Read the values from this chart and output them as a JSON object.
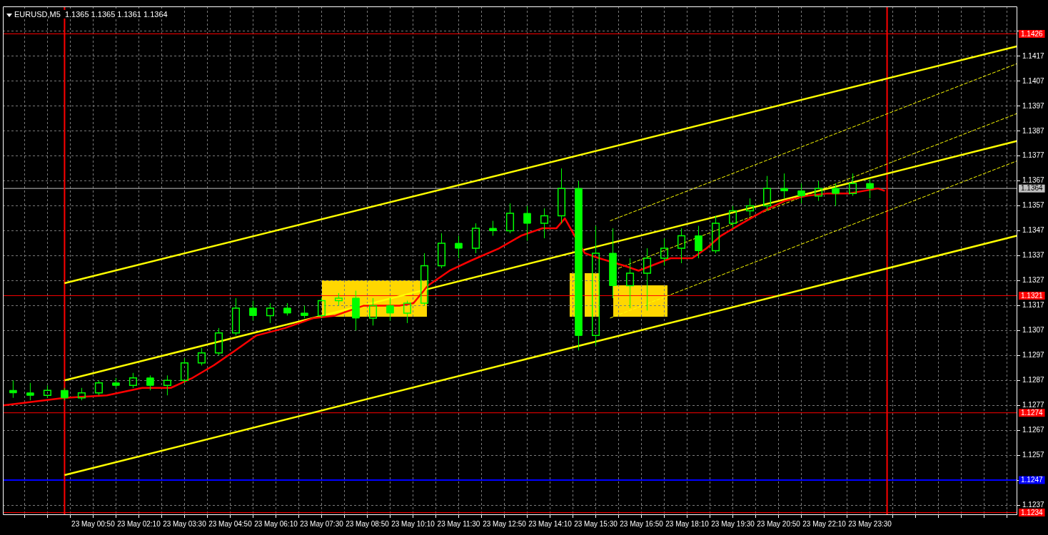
{
  "chart_data": {
    "type": "candlestick",
    "title": "EURUSD,M5  1.1365 1.1365 1.1361 1.1364",
    "color": "#00ff00",
    "x": [
      "--05-22T22:30",
      "--05-22T23:00",
      "--05-22T23:30",
      "--05-23T00:00",
      "--05-23T00:30",
      "--05-23T01:00",
      "--05-23T01:30",
      "--05-23T02:00",
      "--05-23T02:30",
      "--05-23T03:00",
      "--05-23T03:30",
      "--05-23T04:00",
      "--05-23T04:30",
      "--05-23T05:00",
      "--05-23T05:30",
      "--05-23T06:00",
      "--05-23T06:30",
      "--05-23T07:00",
      "--05-23T07:30",
      "--05-23T08:00",
      "--05-23T08:30",
      "--05-23T09:00",
      "--05-23T09:30",
      "--05-23T10:00",
      "--05-23T10:30",
      "--05-23T11:00",
      "--05-23T11:30",
      "--05-23T12:00",
      "--05-23T12:30",
      "--05-23T13:00",
      "--05-23T13:30",
      "--05-23T14:00",
      "--05-23T14:30",
      "--05-23T15:00",
      "--05-23T15:30",
      "--05-23T16:00",
      "--05-23T16:30",
      "--05-23T17:00",
      "--05-23T17:30",
      "--05-23T18:00",
      "--05-23T18:30",
      "--05-23T19:00",
      "--05-23T19:30",
      "--05-23T20:00",
      "--05-23T20:30",
      "--05-23T21:00",
      "--05-23T21:30",
      "--05-23T22:00",
      "--05-23T22:30",
      "--05-23T23:00",
      "--05-23T23:30"
    ],
    "ohlc": [
      [
        1.1283,
        1.1287,
        1.128,
        1.1282
      ],
      [
        1.1282,
        1.1286,
        1.1279,
        1.1281
      ],
      [
        1.1281,
        1.1285,
        1.128,
        1.1283
      ],
      [
        1.1283,
        1.1284,
        1.1279,
        1.128
      ],
      [
        1.128,
        1.1284,
        1.1279,
        1.1282
      ],
      [
        1.1282,
        1.1287,
        1.1281,
        1.1286
      ],
      [
        1.1286,
        1.1288,
        1.1284,
        1.1285
      ],
      [
        1.1285,
        1.129,
        1.1284,
        1.1288
      ],
      [
        1.1288,
        1.1289,
        1.1283,
        1.1285
      ],
      [
        1.1285,
        1.1289,
        1.1281,
        1.1287
      ],
      [
        1.1287,
        1.1296,
        1.1286,
        1.1294
      ],
      [
        1.1294,
        1.13,
        1.1293,
        1.1298
      ],
      [
        1.1298,
        1.1308,
        1.1297,
        1.1306
      ],
      [
        1.1306,
        1.132,
        1.1305,
        1.1316
      ],
      [
        1.1316,
        1.1319,
        1.1311,
        1.1313
      ],
      [
        1.1313,
        1.1318,
        1.131,
        1.1316
      ],
      [
        1.1316,
        1.1318,
        1.1313,
        1.1314
      ],
      [
        1.1314,
        1.1317,
        1.1312,
        1.1313
      ],
      [
        1.1313,
        1.132,
        1.1312,
        1.1319
      ],
      [
        1.1319,
        1.1322,
        1.1317,
        1.132
      ],
      [
        1.132,
        1.1323,
        1.1307,
        1.1312
      ],
      [
        1.1312,
        1.132,
        1.1309,
        1.1317
      ],
      [
        1.1317,
        1.132,
        1.1311,
        1.1314
      ],
      [
        1.1314,
        1.1319,
        1.131,
        1.1318
      ],
      [
        1.1318,
        1.1338,
        1.1317,
        1.1333
      ],
      [
        1.1333,
        1.1346,
        1.1332,
        1.1342
      ],
      [
        1.1342,
        1.1345,
        1.1336,
        1.134
      ],
      [
        1.134,
        1.135,
        1.1338,
        1.1348
      ],
      [
        1.1348,
        1.1351,
        1.1345,
        1.1347
      ],
      [
        1.1347,
        1.1358,
        1.1346,
        1.1354
      ],
      [
        1.1354,
        1.1357,
        1.1343,
        1.135
      ],
      [
        1.135,
        1.1356,
        1.1344,
        1.1353
      ],
      [
        1.1353,
        1.1372,
        1.135,
        1.1364
      ],
      [
        1.1364,
        1.1367,
        1.1299,
        1.1305
      ],
      [
        1.1305,
        1.1349,
        1.1301,
        1.1338
      ],
      [
        1.1338,
        1.1348,
        1.132,
        1.1325
      ],
      [
        1.1325,
        1.1336,
        1.1316,
        1.133
      ],
      [
        1.133,
        1.134,
        1.1315,
        1.1336
      ],
      [
        1.1336,
        1.1344,
        1.1333,
        1.134
      ],
      [
        1.134,
        1.1348,
        1.1334,
        1.1345
      ],
      [
        1.1345,
        1.1349,
        1.1336,
        1.1339
      ],
      [
        1.1339,
        1.1353,
        1.1338,
        1.135
      ],
      [
        1.135,
        1.1357,
        1.1348,
        1.1355
      ],
      [
        1.1355,
        1.136,
        1.1353,
        1.1357
      ],
      [
        1.1357,
        1.1369,
        1.1355,
        1.1364
      ],
      [
        1.1364,
        1.137,
        1.136,
        1.1363
      ],
      [
        1.1363,
        1.1366,
        1.1358,
        1.1361
      ],
      [
        1.1361,
        1.1367,
        1.1359,
        1.1364
      ],
      [
        1.1364,
        1.1366,
        1.1357,
        1.1362
      ],
      [
        1.1362,
        1.137,
        1.1361,
        1.1366
      ],
      [
        1.1366,
        1.1368,
        1.136,
        1.1364
      ]
    ],
    "series": [
      {
        "type": "line",
        "color": "#ff0000",
        "x": [
          "--05-22T22:13",
          "--05-23T00:00",
          "--05-23T01:14",
          "--05-23T02:16",
          "--05-23T03:06",
          "--05-23T03:44",
          "--05-23T04:21",
          "--05-23T04:59",
          "--05-23T05:36",
          "--05-23T06:26",
          "--05-23T07:16",
          "--05-23T07:54",
          "--05-23T08:44",
          "--05-23T09:46",
          "--05-23T10:11",
          "--05-23T10:36",
          "--05-23T11:14",
          "--05-23T11:51",
          "--05-23T12:41",
          "--05-23T13:19",
          "--05-23T13:56",
          "--05-23T14:21",
          "--05-23T14:36",
          "--05-23T14:53",
          "--05-23T15:11",
          "--05-23T15:36",
          "--05-23T16:01",
          "--05-23T16:20",
          "--05-23T16:45",
          "--05-23T17:04",
          "--05-23T17:41",
          "--05-23T18:19",
          "--05-23T18:44",
          "--05-23T19:09",
          "--05-23T19:46",
          "--05-23T20:24",
          "--05-23T21:01",
          "--05-23T21:39",
          "--05-23T22:16",
          "--05-23T22:54",
          "--05-23T23:44",
          "--05-23T23:56"
        ],
        "values": [
          1.1277,
          1.128,
          1.1281,
          1.1284,
          1.1284,
          1.1288,
          1.1293,
          1.1299,
          1.1305,
          1.1308,
          1.1312,
          1.1313,
          1.1317,
          1.1317,
          1.1318,
          1.1325,
          1.1331,
          1.1335,
          1.134,
          1.1345,
          1.1348,
          1.1348,
          1.1352,
          1.1345,
          1.1338,
          1.1336,
          null,
          1.1333,
          1.1331,
          null,
          1.1336,
          1.1336,
          1.134,
          1.1345,
          1.135,
          1.1355,
          1.1359,
          1.1361,
          1.1362,
          1.1362,
          1.1364,
          1.1363
        ]
      },
      {
        "type": "line",
        "color": "#ffff00",
        "x": [
          "--05-23T00:00",
          "--05-24T03:47"
        ],
        "values": [
          1.1326,
          1.1421
        ]
      },
      {
        "type": "line",
        "color": "#ffff00",
        "x": [
          "--05-23T00:00",
          "--05-24T03:47"
        ],
        "values": [
          1.1287,
          1.1383
        ]
      },
      {
        "type": "line",
        "color": "#ffff00",
        "x": [
          "--05-23T00:00",
          "--05-24T03:47"
        ],
        "values": [
          1.1249,
          1.1345
        ]
      },
      {
        "type": "line",
        "color": "#ffff00",
        "line_style": "dashed",
        "x": [
          "--05-23T15:55",
          "--05-24T03:47"
        ],
        "values": [
          1.1351,
          1.1414
        ]
      },
      {
        "type": "line",
        "color": "#ffff00",
        "line_style": "dashed",
        "x": [
          "--05-23T16:10",
          "--05-24T03:47"
        ],
        "values": [
          1.1332,
          1.1394
        ]
      },
      {
        "type": "line",
        "color": "#ffff00",
        "line_style": "dashed",
        "x": [
          "--05-23T15:55",
          "--05-24T03:47"
        ],
        "values": [
          1.1312,
          1.1375
        ]
      }
    ],
    "xlim": [
      "--05-22T22:12",
      "--05-24T03:48"
    ],
    "xticks": [
      {
        "value": "--05-22T22:50",
        "label": null
      },
      {
        "value": "--05-22T23:30",
        "label": null
      },
      {
        "value": "--05-23T00:10",
        "label": null
      },
      {
        "value": "--05-23T00:50",
        "label": "23 May 00:50"
      },
      {
        "value": "--05-23T01:30",
        "label": null
      },
      {
        "value": "--05-23T02:10",
        "label": "23 May 02:10"
      },
      {
        "value": "--05-23T02:50",
        "label": null
      },
      {
        "value": "--05-23T03:30",
        "label": "23 May 03:30"
      },
      {
        "value": "--05-23T04:10",
        "label": null
      },
      {
        "value": "--05-23T04:50",
        "label": "23 May 04:50"
      },
      {
        "value": "--05-23T05:30",
        "label": null
      },
      {
        "value": "--05-23T06:10",
        "label": "23 May 06:10"
      },
      {
        "value": "--05-23T06:50",
        "label": null
      },
      {
        "value": "--05-23T07:30",
        "label": "23 May 07:30"
      },
      {
        "value": "--05-23T08:10",
        "label": null
      },
      {
        "value": "--05-23T08:50",
        "label": "23 May 08:50"
      },
      {
        "value": "--05-23T09:30",
        "label": null
      },
      {
        "value": "--05-23T10:10",
        "label": "23 May 10:10"
      },
      {
        "value": "--05-23T10:50",
        "label": null
      },
      {
        "value": "--05-23T11:30",
        "label": "23 May 11:30"
      },
      {
        "value": "--05-23T12:10",
        "label": null
      },
      {
        "value": "--05-23T12:50",
        "label": "23 May 12:50"
      },
      {
        "value": "--05-23T13:30",
        "label": null
      },
      {
        "value": "--05-23T14:10",
        "label": "23 May 14:10"
      },
      {
        "value": "--05-23T14:50",
        "label": null
      },
      {
        "value": "--05-23T15:30",
        "label": "23 May 15:30"
      },
      {
        "value": "--05-23T16:10",
        "label": null
      },
      {
        "value": "--05-23T16:50",
        "label": "23 May 16:50"
      },
      {
        "value": "--05-23T17:30",
        "label": null
      },
      {
        "value": "--05-23T18:10",
        "label": "23 May 18:10"
      },
      {
        "value": "--05-23T18:50",
        "label": null
      },
      {
        "value": "--05-23T19:30",
        "label": "23 May 19:30"
      },
      {
        "value": "--05-23T20:10",
        "label": null
      },
      {
        "value": "--05-23T20:50",
        "label": "23 May 20:50"
      },
      {
        "value": "--05-23T21:30",
        "label": null
      },
      {
        "value": "--05-23T22:10",
        "label": "23 May 22:10"
      },
      {
        "value": "--05-23T22:50",
        "label": null
      },
      {
        "value": "--05-23T23:30",
        "label": "23 May 23:30"
      },
      {
        "value": "--05-24T00:10",
        "label": null
      },
      {
        "value": "--05-24T00:50",
        "label": null
      },
      {
        "value": "--05-24T01:30",
        "label": null
      },
      {
        "value": "--05-24T02:10",
        "label": null
      },
      {
        "value": "--05-24T02:50",
        "label": null
      },
      {
        "value": "--05-24T03:30",
        "label": null
      }
    ],
    "ylim": [
      1.1233,
      1.1437
    ],
    "yticks": [
      1.1237,
      1.1247,
      1.1257,
      1.1267,
      1.1277,
      1.1287,
      1.1297,
      1.1307,
      1.1317,
      1.1327,
      1.1337,
      1.1347,
      1.1357,
      1.1367,
      1.1377,
      1.1387,
      1.1397,
      1.1407,
      1.1417,
      {
        "value": 1.1427,
        "label": null
      }
    ],
    "ref_lines": [
      {
        "axis": "y",
        "value": 1.1426,
        "label": "1.1426",
        "color": "#ff0000"
      },
      {
        "axis": "y",
        "value": 1.1364,
        "label": "1.1364",
        "color": "#c0c0c0"
      },
      {
        "axis": "y",
        "value": 1.1321,
        "label": "1.1321",
        "color": "#ff0000"
      },
      {
        "axis": "y",
        "value": 1.1274,
        "label": "1.1274",
        "color": "#ff0000"
      },
      {
        "axis": "y",
        "value": 1.1247,
        "label": "1.1247",
        "color": "#0000ff"
      },
      {
        "axis": "y",
        "value": 1.1234,
        "label": "1.1234",
        "color": "#ff0000"
      },
      {
        "axis": "x",
        "value": "--05-23T00:00",
        "color": "#ff0000"
      },
      {
        "axis": "x",
        "value": "--05-24T00:00",
        "color": "#ff0000"
      }
    ],
    "grid": true,
    "legend": false
  }
}
